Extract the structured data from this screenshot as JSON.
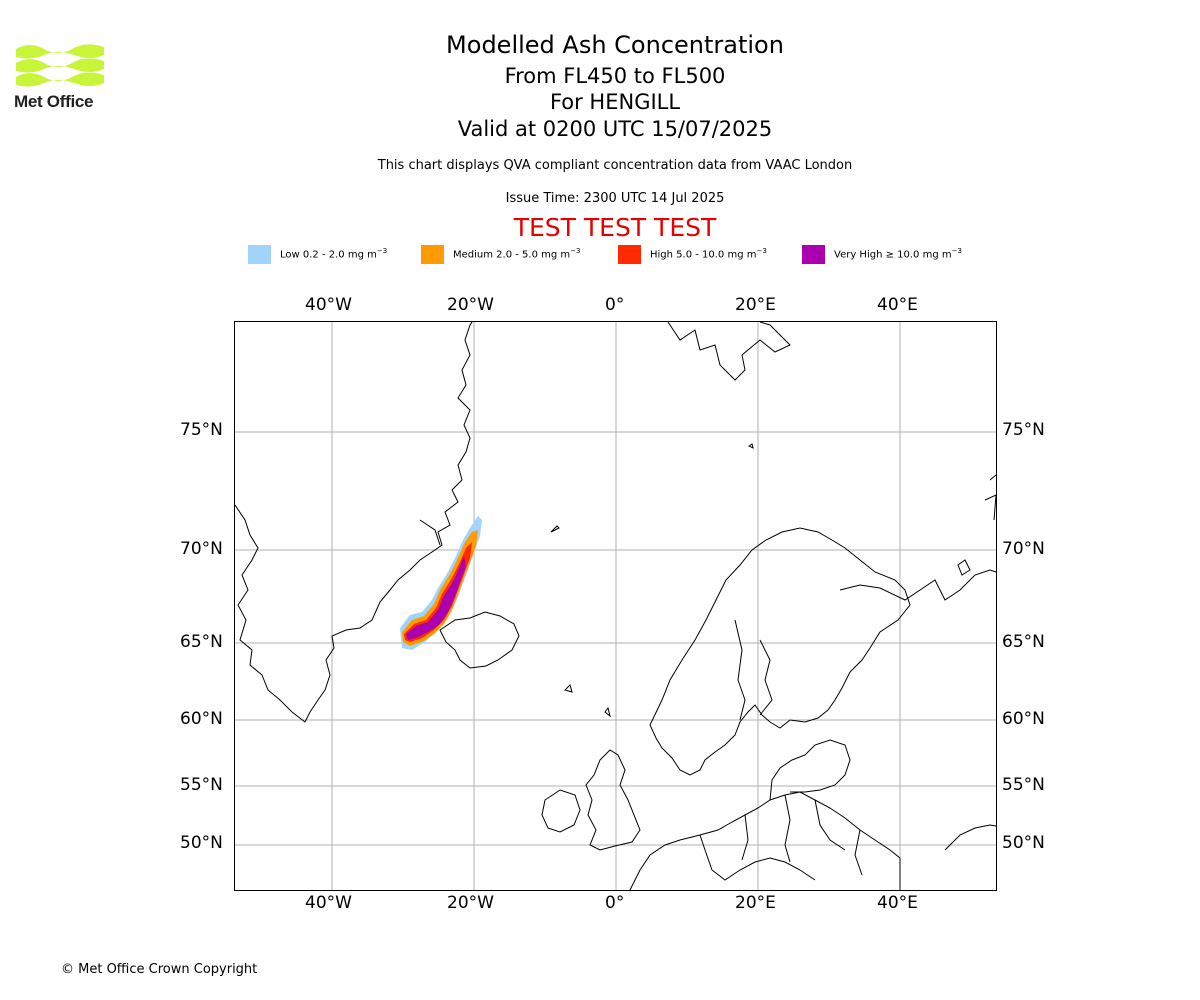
{
  "logo": {
    "text": "Met Office",
    "icon": "met-office-wave-logo",
    "color": "#c8f53a"
  },
  "header": {
    "title": "Modelled Ash Concentration",
    "levels": "From FL450 to FL500",
    "volcano": "For HENGILL",
    "valid": "Valid at 0200 UTC 15/07/2025",
    "description": "This chart displays QVA compliant concentration data from VAAC London",
    "issue_time": "Issue Time: 2300 UTC 14 Jul 2025",
    "test_banner": "TEST TEST TEST"
  },
  "legend": [
    {
      "label": "Low 0.2 - 2.0 mg m",
      "color": "#a0d4fa"
    },
    {
      "label": "Medium 2.0 - 5.0 mg m",
      "color": "#ff9a00"
    },
    {
      "label": "High 5.0 - 10.0 mg m",
      "color": "#ff2a00"
    },
    {
      "label": "Very High ≥ 10.0 mg m",
      "color": "#aa00b0"
    }
  ],
  "legend_unit_exp": "−3",
  "map": {
    "lon_ticks": [
      "40°W",
      "20°W",
      "0°",
      "20°E",
      "40°E"
    ],
    "lat_ticks": [
      "75°N",
      "70°N",
      "65°N",
      "60°N",
      "55°N",
      "50°N"
    ],
    "land_outline_color": "#000000",
    "grid_color": "#b0b0b0"
  },
  "footer": {
    "copyright": "© Met Office Crown Copyright"
  }
}
